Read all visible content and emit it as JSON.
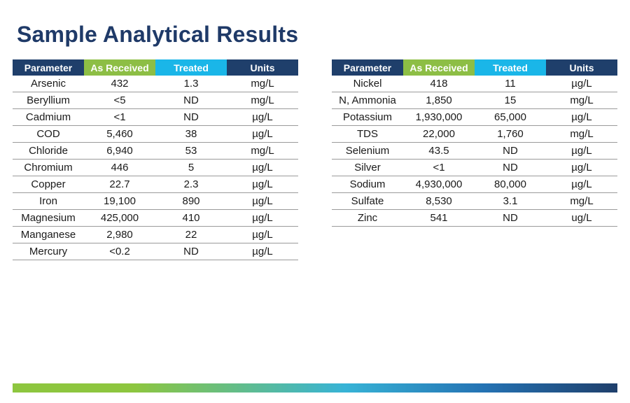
{
  "title": "Sample Analytical Results",
  "colors": {
    "title": "#1f3a68",
    "header_parameter": "#1f3f6b",
    "header_as_received": "#8dbe45",
    "header_treated": "#1ab6e8",
    "header_units": "#1f3f6b"
  },
  "headers": {
    "parameter": "Parameter",
    "as_received": "As Received",
    "treated": "Treated",
    "units": "Units"
  },
  "left_table": {
    "rows": [
      {
        "parameter": "Arsenic",
        "as_received": "432",
        "treated": "1.3",
        "units": "mg/L"
      },
      {
        "parameter": "Beryllium",
        "as_received": "<5",
        "treated": "ND",
        "units": "mg/L"
      },
      {
        "parameter": "Cadmium",
        "as_received": "<1",
        "treated": "ND",
        "units": "µg/L"
      },
      {
        "parameter": "COD",
        "as_received": "5,460",
        "treated": "38",
        "units": "µg/L"
      },
      {
        "parameter": "Chloride",
        "as_received": "6,940",
        "treated": "53",
        "units": "mg/L"
      },
      {
        "parameter": "Chromium",
        "as_received": "446",
        "treated": "5",
        "units": "µg/L"
      },
      {
        "parameter": "Copper",
        "as_received": "22.7",
        "treated": "2.3",
        "units": "µg/L"
      },
      {
        "parameter": "Iron",
        "as_received": "19,100",
        "treated": "890",
        "units": "µg/L"
      },
      {
        "parameter": "Magnesium",
        "as_received": "425,000",
        "treated": "410",
        "units": "µg/L"
      },
      {
        "parameter": "Manganese",
        "as_received": "2,980",
        "treated": "22",
        "units": "µg/L"
      },
      {
        "parameter": "Mercury",
        "as_received": "<0.2",
        "treated": "ND",
        "units": "µg/L"
      }
    ]
  },
  "right_table": {
    "rows": [
      {
        "parameter": "Nickel",
        "as_received": "418",
        "treated": "11",
        "units": "µg/L"
      },
      {
        "parameter": "N, Ammonia",
        "as_received": "1,850",
        "treated": "15",
        "units": "mg/L"
      },
      {
        "parameter": "Potassium",
        "as_received": "1,930,000",
        "treated": "65,000",
        "units": "µg/L"
      },
      {
        "parameter": "TDS",
        "as_received": "22,000",
        "treated": "1,760",
        "units": "mg/L"
      },
      {
        "parameter": "Selenium",
        "as_received": "43.5",
        "treated": "ND",
        "units": "µg/L"
      },
      {
        "parameter": "Silver",
        "as_received": "<1",
        "treated": "ND",
        "units": "µg/L"
      },
      {
        "parameter": "Sodium",
        "as_received": "4,930,000",
        "treated": "80,000",
        "units": "µg/L"
      },
      {
        "parameter": "Sulfate",
        "as_received": "8,530",
        "treated": "3.1",
        "units": "mg/L"
      },
      {
        "parameter": "Zinc",
        "as_received": "541",
        "treated": "ND",
        "units": "ug/L"
      }
    ]
  }
}
